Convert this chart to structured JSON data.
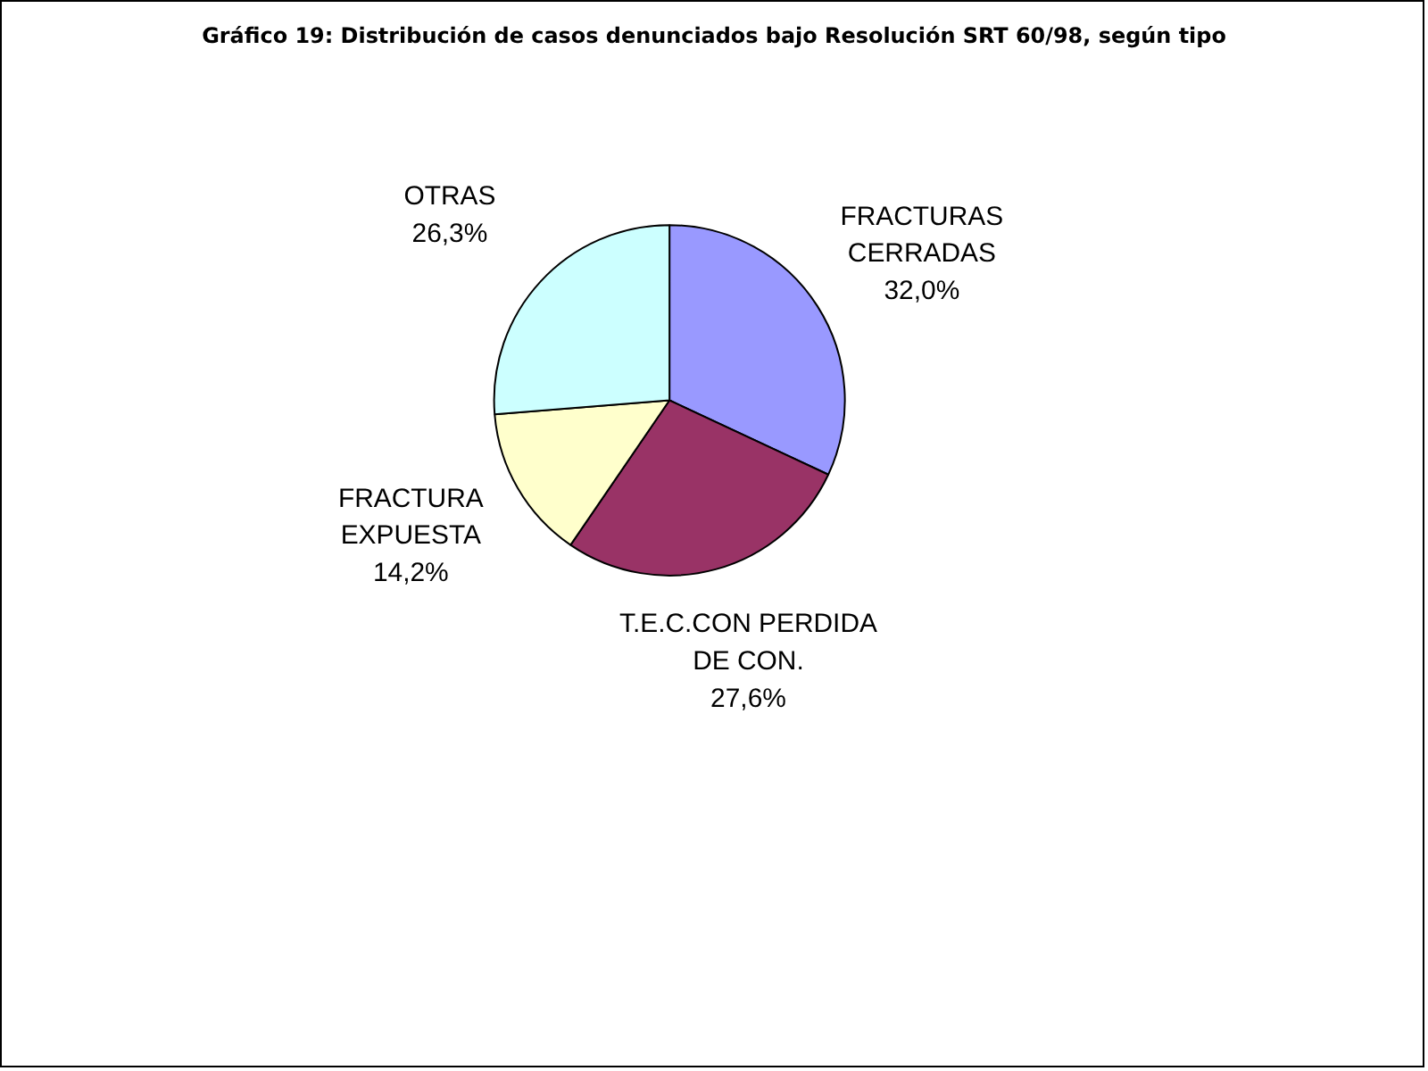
{
  "chart_data": {
    "type": "pie",
    "title": "Gráfico 19: Distribución de casos denunciados bajo Resolución SRT 60/98, según tipo",
    "categories": [
      "FRACTURAS CERRADAS",
      "T.E.C.CON PERDIDA DE CON.",
      "FRACTURA EXPUESTA",
      "OTRAS"
    ],
    "values": [
      32.0,
      27.6,
      14.2,
      26.3
    ],
    "value_labels": [
      "32,0%",
      "27,6%",
      "14,2%",
      "26,3%"
    ],
    "colors": [
      "#9999ff",
      "#993366",
      "#ffffcc",
      "#ccffff"
    ],
    "legend": false
  }
}
